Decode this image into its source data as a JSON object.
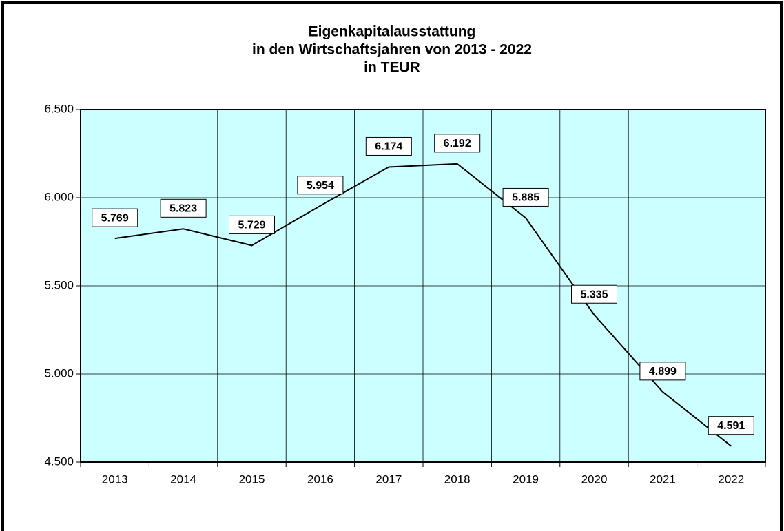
{
  "chart_data": {
    "type": "line",
    "title": [
      "Eigenkapitalausstattung",
      "in den Wirtschaftsjahren von 2013 - 2022",
      "in TEUR"
    ],
    "categories": [
      "2013",
      "2014",
      "2015",
      "2016",
      "2017",
      "2018",
      "2019",
      "2020",
      "2021",
      "2022"
    ],
    "series": [
      {
        "color": "#000000",
        "values": [
          5769,
          5823,
          5729,
          5954,
          6174,
          6192,
          5885,
          5335,
          4899,
          4591
        ],
        "value_labels": [
          "5.769",
          "5.823",
          "5.729",
          "5.954",
          "6.174",
          "6.192",
          "5.885",
          "5.335",
          "4.899",
          "4.591"
        ]
      }
    ],
    "ylim": [
      4500,
      6500
    ],
    "yticks": [
      {
        "value": 4500,
        "label": "4.500"
      },
      {
        "value": 5000,
        "label": "5.000"
      },
      {
        "value": 5500,
        "label": "5.500"
      },
      {
        "value": 6000,
        "label": "6.000"
      },
      {
        "value": 6500,
        "label": "6.500"
      }
    ],
    "grid": true,
    "background": "#ccffff"
  }
}
